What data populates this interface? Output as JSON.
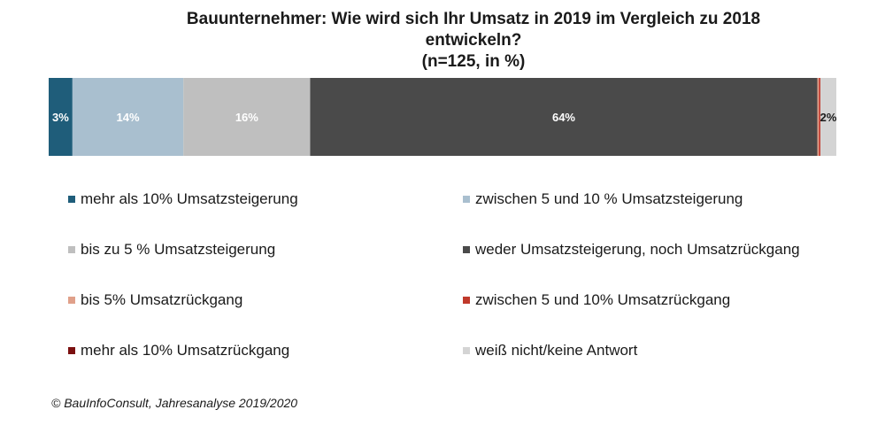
{
  "chart_data": {
    "type": "bar",
    "orientation": "horizontal-stacked",
    "title_lines": [
      "Bauunternehmer:  Wie wird sich Ihr Umsatz in 2019 im Vergleich zu 2018",
      "entwickeln?",
      "(n=125, in %)"
    ],
    "series": [
      {
        "name": "mehr als 10% Umsatzsteigerung",
        "value": 3,
        "label": "3%",
        "color": "#1f5d7a",
        "label_color": "#ffffff"
      },
      {
        "name": "zwischen 5 und 10 % Umsatzsteigerung",
        "value": 14,
        "label": "14%",
        "color": "#a9bfcf",
        "label_color": "#ffffff"
      },
      {
        "name": "bis zu 5 % Umsatzsteigerung",
        "value": 16,
        "label": "16%",
        "color": "#bfbfbf",
        "label_color": "#ffffff"
      },
      {
        "name": "weder Umsatzsteigerung, noch Umsatzrückgang",
        "value": 64,
        "label": "64%",
        "color": "#4a4a4a",
        "label_color": "#ffffff"
      },
      {
        "name": "bis 5% Umsatzrückgang",
        "value": 0.2,
        "label": "",
        "color": "#e0a08a",
        "label_color": "#1a1a1a"
      },
      {
        "name": "zwischen 5 und 10% Umsatzrückgang",
        "value": 0.2,
        "label": "",
        "color": "#c0392b",
        "label_color": "#1a1a1a"
      },
      {
        "name": "mehr als 10% Umsatzrückgang",
        "value": 0,
        "label": "",
        "color": "#7b1010",
        "label_color": "#1a1a1a"
      },
      {
        "name": "weiß nicht/keine Antwort",
        "value": 2,
        "label": "2%",
        "color": "#d4d4d4",
        "label_color": "#1a1a1a"
      }
    ],
    "legend_position": "bottom",
    "source": "© BauInfoConsult, Jahresanalyse 2019/2020"
  }
}
